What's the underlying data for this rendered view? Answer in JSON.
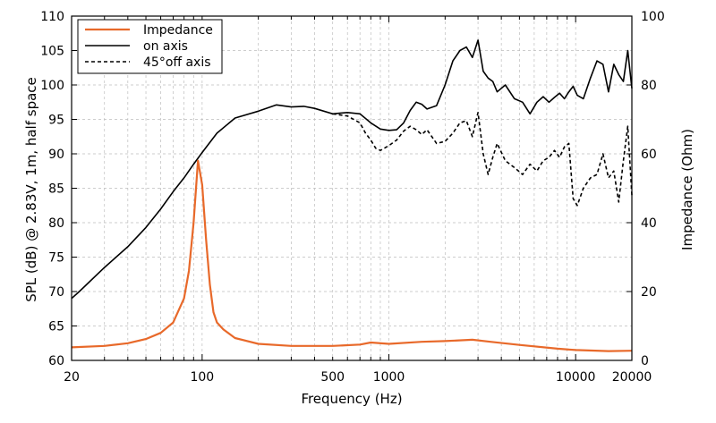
{
  "chart_data": {
    "type": "line",
    "xscale": "log",
    "xlabel": "Frequency (Hz)",
    "ylabel": "SPL (dB) @ 2.83V, 1m, half space",
    "y2label": "Impedance (Ohm)",
    "xlim": [
      20,
      20000
    ],
    "ylim": [
      60,
      110
    ],
    "y2lim": [
      0,
      100
    ],
    "grid": true,
    "legend_position": "top-left",
    "xticks": [
      20,
      100,
      500,
      1000,
      10000,
      20000
    ],
    "xtick_labels": [
      "20",
      "100",
      "500",
      "1000",
      "10000",
      "20000"
    ],
    "yticks": [
      60,
      65,
      70,
      75,
      80,
      85,
      90,
      95,
      100,
      105,
      110
    ],
    "ytick_labels": [
      "60",
      "65",
      "70",
      "75",
      "80",
      "85",
      "90",
      "95",
      "100",
      "105",
      "110"
    ],
    "y2ticks": [
      0,
      20,
      40,
      60,
      80,
      100
    ],
    "y2tick_labels": [
      "0",
      "20",
      "40",
      "60",
      "80",
      "100"
    ],
    "colors": {
      "impedance": "#e8692a",
      "on_axis": "#000000",
      "off_axis": "#000000"
    },
    "series": [
      {
        "name": "Impedance",
        "axis": "right",
        "style": "solid",
        "color": "#e8692a",
        "x": [
          20,
          30,
          40,
          50,
          60,
          70,
          80,
          85,
          90,
          95,
          100,
          105,
          110,
          115,
          120,
          130,
          150,
          200,
          300,
          500,
          700,
          800,
          1000,
          1500,
          2000,
          2800,
          3500,
          5000,
          8000,
          10000,
          15000,
          20000
        ],
        "y": [
          3.8,
          4.2,
          5.0,
          6.2,
          8.0,
          11.0,
          18.0,
          26.0,
          40.0,
          58.0,
          51.0,
          35.0,
          22.0,
          14.0,
          11.0,
          9.0,
          6.5,
          4.8,
          4.2,
          4.2,
          4.6,
          5.2,
          4.8,
          5.4,
          5.6,
          6.0,
          5.4,
          4.5,
          3.4,
          3.0,
          2.7,
          2.8
        ]
      },
      {
        "name": "on axis",
        "axis": "left",
        "style": "solid",
        "color": "#000000",
        "x": [
          20,
          22,
          30,
          40,
          50,
          60,
          70,
          80,
          90,
          100,
          120,
          150,
          200,
          250,
          300,
          350,
          400,
          500,
          600,
          700,
          800,
          900,
          1000,
          1100,
          1200,
          1300,
          1400,
          1500,
          1600,
          1800,
          2000,
          2200,
          2400,
          2600,
          2800,
          3000,
          3200,
          3400,
          3600,
          3800,
          4200,
          4700,
          5200,
          5700,
          6200,
          6700,
          7200,
          7700,
          8200,
          8700,
          9200,
          9700,
          10200,
          11000,
          12000,
          13000,
          14000,
          15000,
          16000,
          17000,
          18000,
          19000,
          20000
        ],
        "y": [
          69.0,
          70.0,
          73.5,
          76.5,
          79.3,
          82.0,
          84.5,
          86.5,
          88.5,
          90.2,
          93.0,
          95.2,
          96.2,
          97.1,
          96.8,
          96.9,
          96.6,
          95.8,
          96.0,
          95.8,
          94.5,
          93.6,
          93.4,
          93.5,
          94.5,
          96.3,
          97.5,
          97.2,
          96.5,
          97.0,
          100.0,
          103.5,
          105.0,
          105.5,
          104.0,
          106.5,
          102.0,
          101.0,
          100.5,
          99.0,
          100.0,
          98.0,
          97.5,
          95.8,
          97.5,
          98.3,
          97.5,
          98.2,
          98.8,
          98.0,
          99.0,
          99.8,
          98.5,
          98.0,
          101.0,
          103.5,
          103.0,
          99.0,
          103.0,
          101.5,
          100.5,
          105.0,
          99.5
        ]
      },
      {
        "name": "45°off axis",
        "axis": "left",
        "style": "dashed",
        "color": "#000000",
        "x": [
          500,
          600,
          700,
          750,
          800,
          850,
          900,
          1000,
          1100,
          1200,
          1300,
          1400,
          1500,
          1600,
          1800,
          2000,
          2200,
          2400,
          2600,
          2800,
          3000,
          3200,
          3400,
          3600,
          3800,
          4200,
          4700,
          5200,
          5700,
          6200,
          6700,
          7200,
          7700,
          8200,
          8700,
          9200,
          9700,
          10200,
          11000,
          12000,
          13000,
          14000,
          15000,
          16000,
          17000,
          18000,
          19000,
          20000
        ],
        "y": [
          95.8,
          95.5,
          94.5,
          93.0,
          92.0,
          90.8,
          90.5,
          91.2,
          92.0,
          93.3,
          94.0,
          93.5,
          92.8,
          93.5,
          91.5,
          91.8,
          93.0,
          94.5,
          94.8,
          92.5,
          96.0,
          90.0,
          87.0,
          89.5,
          91.5,
          89.0,
          88.0,
          87.0,
          88.5,
          87.5,
          89.0,
          89.5,
          90.5,
          89.5,
          91.0,
          91.5,
          83.5,
          82.5,
          85.0,
          86.5,
          87.0,
          90.0,
          86.5,
          87.5,
          83.0,
          89.0,
          94.0,
          84.0
        ]
      }
    ]
  }
}
